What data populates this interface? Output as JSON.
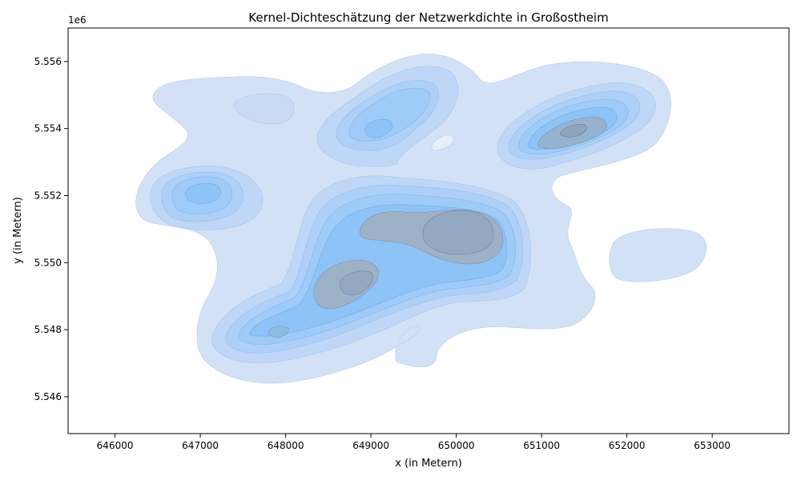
{
  "chart_data": {
    "type": "kde-contour",
    "title": "Kernel-Dichteschätzung der Netzwerkdichte in Großostheim",
    "xlabel": "x (in Metern)",
    "ylabel": "y (in Metern)",
    "y_offset_label": "1e6",
    "xlim": [
      645450,
      653900
    ],
    "ylim": [
      5544900,
      5557000
    ],
    "xticks": [
      646000,
      647000,
      648000,
      649000,
      650000,
      651000,
      652000,
      653000
    ],
    "yticks": [
      5546000,
      5548000,
      5550000,
      5552000,
      5554000,
      5556000
    ],
    "xtick_labels": [
      "646000",
      "647000",
      "648000",
      "649000",
      "650000",
      "651000",
      "652000",
      "653000"
    ],
    "ytick_labels": [
      "5.546",
      "5.548",
      "5.550",
      "5.552",
      "5.554",
      "5.556"
    ],
    "grid": false,
    "colors": {
      "low": "#d2e1f6",
      "mid": "#9ecbf7",
      "high": "#5fb4f5",
      "peak": "#9aa8bd"
    },
    "density_peaks": [
      {
        "x": 650050,
        "y": 5550900,
        "level": "peak"
      },
      {
        "x": 648850,
        "y": 5549300,
        "level": "peak"
      },
      {
        "x": 651400,
        "y": 5553950,
        "level": "peak"
      },
      {
        "x": 647900,
        "y": 5547950,
        "level": "high"
      },
      {
        "x": 647000,
        "y": 5552100,
        "level": "high"
      },
      {
        "x": 649150,
        "y": 5553950,
        "level": "high"
      },
      {
        "x": 649500,
        "y": 5554700,
        "level": "mid"
      },
      {
        "x": 647700,
        "y": 5554650,
        "level": "low"
      },
      {
        "x": 652350,
        "y": 5550250,
        "level": "low"
      },
      {
        "x": 649800,
        "y": 5553550,
        "level": "low"
      }
    ]
  }
}
